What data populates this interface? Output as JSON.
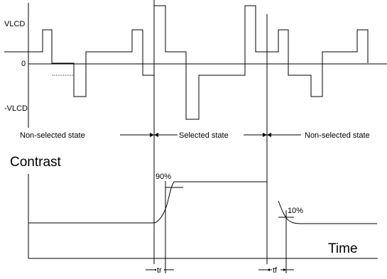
{
  "waveform": {
    "vlcd_label": "VLCD",
    "zero_label": "0",
    "neg_vlcd_label": "-VLCD"
  },
  "states": {
    "left": "Non-selected state",
    "middle": "Selected state",
    "right": "Non-selected state"
  },
  "contrast": {
    "title": "Contrast",
    "ninety": "90%",
    "ten": "10%",
    "time_label": "Time",
    "tr_label": "tr",
    "tf_label": "tf"
  }
}
